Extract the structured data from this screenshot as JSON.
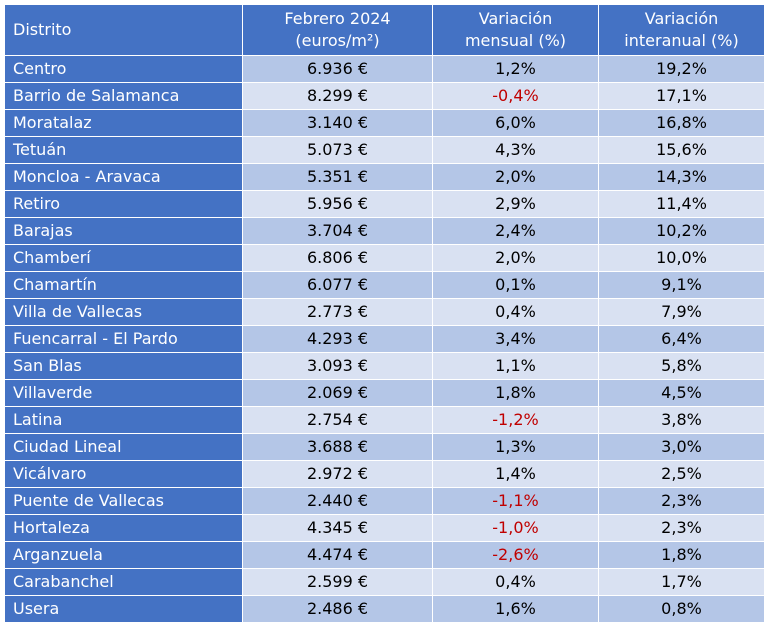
{
  "colors": {
    "header_bg": "#4472c4",
    "header_text": "#ffffff",
    "row_odd_bg": "#b4c6e7",
    "row_even_bg": "#d9e1f2",
    "negative_text": "#c00000"
  },
  "headers": {
    "district": "Distrito",
    "price_line1": "Febrero 2024",
    "price_line2": "(euros/m²)",
    "monthly_line1": "Variación",
    "monthly_line2": "mensual (%)",
    "yearly_line1": "Variación",
    "yearly_line2": "interanual (%)"
  },
  "rows": [
    {
      "district": "Centro",
      "price": "6.936 €",
      "monthly": "1,2%",
      "yearly": "19,2%"
    },
    {
      "district": "Barrio de Salamanca",
      "price": "8.299 €",
      "monthly": "-0,4%",
      "yearly": "17,1%"
    },
    {
      "district": "Moratalaz",
      "price": "3.140 €",
      "monthly": "6,0%",
      "yearly": "16,8%"
    },
    {
      "district": "Tetuán",
      "price": "5.073 €",
      "monthly": "4,3%",
      "yearly": "15,6%"
    },
    {
      "district": "Moncloa - Aravaca",
      "price": "5.351 €",
      "monthly": "2,0%",
      "yearly": "14,3%"
    },
    {
      "district": "Retiro",
      "price": "5.956 €",
      "monthly": "2,9%",
      "yearly": "11,4%"
    },
    {
      "district": "Barajas",
      "price": "3.704 €",
      "monthly": "2,4%",
      "yearly": "10,2%"
    },
    {
      "district": "Chamberí",
      "price": "6.806 €",
      "monthly": "2,0%",
      "yearly": "10,0%"
    },
    {
      "district": "Chamartín",
      "price": "6.077 €",
      "monthly": "0,1%",
      "yearly": "9,1%"
    },
    {
      "district": "Villa de Vallecas",
      "price": "2.773 €",
      "monthly": "0,4%",
      "yearly": "7,9%"
    },
    {
      "district": "Fuencarral - El Pardo",
      "price": "4.293 €",
      "monthly": "3,4%",
      "yearly": "6,4%"
    },
    {
      "district": "San Blas",
      "price": "3.093 €",
      "monthly": "1,1%",
      "yearly": "5,8%"
    },
    {
      "district": "Villaverde",
      "price": "2.069 €",
      "monthly": "1,8%",
      "yearly": "4,5%"
    },
    {
      "district": "Latina",
      "price": "2.754 €",
      "monthly": "-1,2%",
      "yearly": "3,8%"
    },
    {
      "district": "Ciudad Lineal",
      "price": "3.688 €",
      "monthly": "1,3%",
      "yearly": "3,0%"
    },
    {
      "district": "Vicálvaro",
      "price": "2.972 €",
      "monthly": "1,4%",
      "yearly": "2,5%"
    },
    {
      "district": "Puente de Vallecas",
      "price": "2.440 €",
      "monthly": "-1,1%",
      "yearly": "2,3%"
    },
    {
      "district": "Hortaleza",
      "price": "4.345 €",
      "monthly": "-1,0%",
      "yearly": "2,3%"
    },
    {
      "district": "Arganzuela",
      "price": "4.474 €",
      "monthly": "-2,6%",
      "yearly": "1,8%"
    },
    {
      "district": "Carabanchel",
      "price": "2.599 €",
      "monthly": "0,4%",
      "yearly": "1,7%"
    },
    {
      "district": "Usera",
      "price": "2.486 €",
      "monthly": "1,6%",
      "yearly": "0,8%"
    }
  ]
}
